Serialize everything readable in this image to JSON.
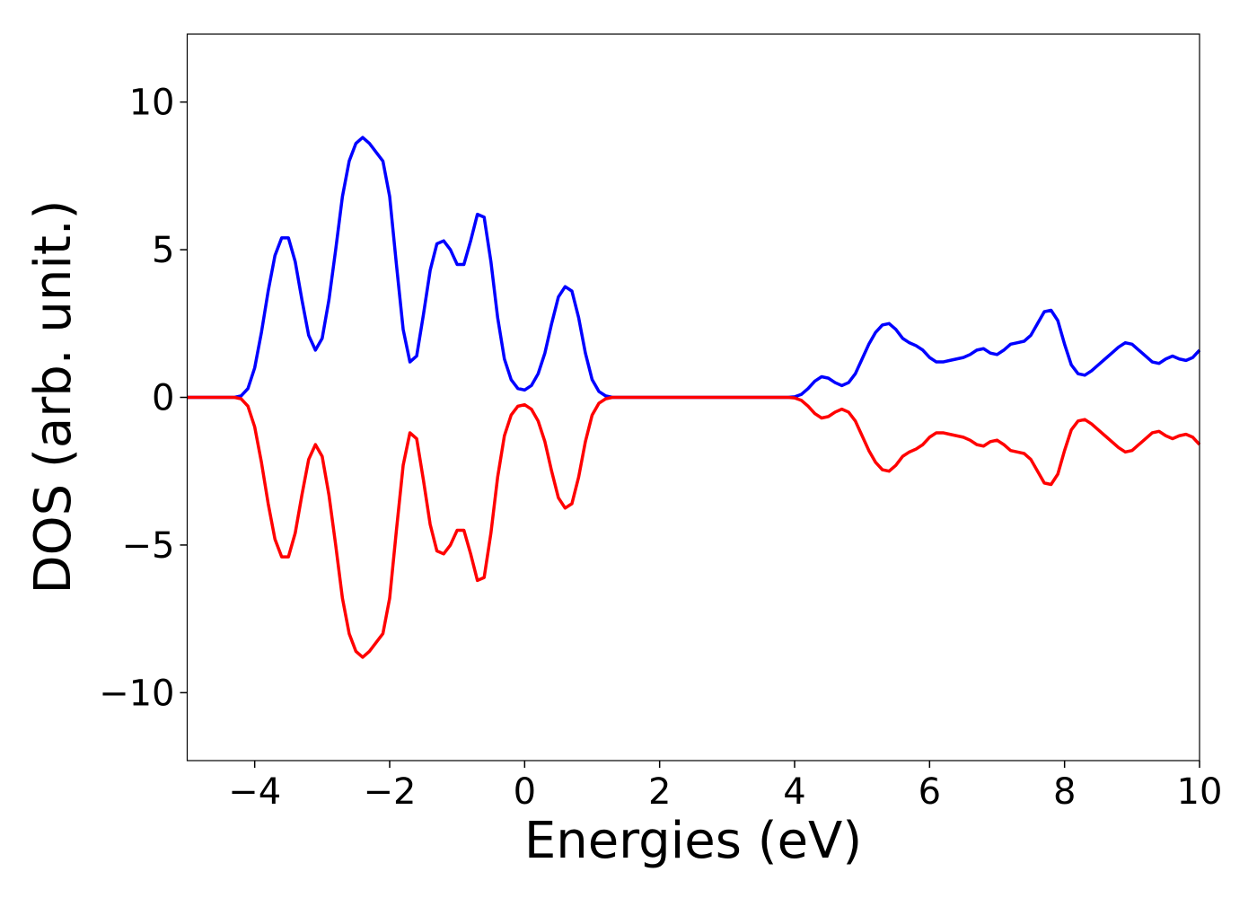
{
  "chart_data": {
    "type": "line",
    "xlabel": "Energies (eV)",
    "ylabel": "DOS (arb. unit.)",
    "xlim": [
      -5,
      10
    ],
    "ylim": [
      -12.3,
      12.3
    ],
    "xticks": [
      {
        "value": -4,
        "label": "−4"
      },
      {
        "value": -2,
        "label": "−2"
      },
      0,
      2,
      4,
      6,
      8,
      10
    ],
    "yticks": [
      {
        "value": -10,
        "label": "−10"
      },
      {
        "value": -5,
        "label": "−5"
      },
      0,
      5,
      10
    ],
    "grid": false,
    "x": [
      -5.0,
      -4.9,
      -4.8,
      -4.7,
      -4.6,
      -4.5,
      -4.4,
      -4.3,
      -4.2,
      -4.1,
      -4.0,
      -3.9,
      -3.8,
      -3.7,
      -3.6,
      -3.5,
      -3.4,
      -3.3,
      -3.2,
      -3.1,
      -3.0,
      -2.9,
      -2.8,
      -2.7,
      -2.6,
      -2.5,
      -2.4,
      -2.3,
      -2.2,
      -2.1,
      -2.0,
      -1.9,
      -1.8,
      -1.7,
      -1.6,
      -1.5,
      -1.4,
      -1.3,
      -1.2,
      -1.1,
      -1.0,
      -0.9,
      -0.8,
      -0.7,
      -0.6,
      -0.5,
      -0.4,
      -0.3,
      -0.2,
      -0.1,
      0.0,
      0.1,
      0.2,
      0.3,
      0.4,
      0.5,
      0.6,
      0.7,
      0.8,
      0.9,
      1.0,
      1.1,
      1.2,
      1.3,
      1.4,
      1.5,
      1.6,
      1.7,
      1.8,
      1.9,
      2.0,
      2.1,
      2.2,
      2.3,
      2.4,
      2.5,
      2.6,
      2.7,
      2.8,
      2.9,
      3.0,
      3.1,
      3.2,
      3.3,
      3.4,
      3.5,
      3.6,
      3.7,
      3.8,
      3.9,
      4.0,
      4.1,
      4.2,
      4.3,
      4.4,
      4.5,
      4.6,
      4.7,
      4.8,
      4.9,
      5.0,
      5.1,
      5.2,
      5.3,
      5.4,
      5.5,
      5.6,
      5.7,
      5.8,
      5.9,
      6.0,
      6.1,
      6.2,
      6.3,
      6.4,
      6.5,
      6.6,
      6.7,
      6.8,
      6.9,
      7.0,
      7.1,
      7.2,
      7.3,
      7.4,
      7.5,
      7.6,
      7.7,
      7.8,
      7.9,
      8.0,
      8.1,
      8.2,
      8.3,
      8.4,
      8.5,
      8.6,
      8.7,
      8.8,
      8.9,
      9.0,
      9.1,
      9.2,
      9.3,
      9.4,
      9.5,
      9.6,
      9.7,
      9.8,
      9.9,
      10.0
    ],
    "series": [
      {
        "color": "#0000ff",
        "values": [
          0,
          0,
          0,
          0,
          0,
          0,
          0,
          0,
          0.05,
          0.3,
          1.0,
          2.2,
          3.6,
          4.8,
          5.4,
          5.4,
          4.6,
          3.3,
          2.1,
          1.6,
          2.0,
          3.3,
          5.0,
          6.8,
          8.0,
          8.6,
          8.8,
          8.6,
          8.3,
          8.0,
          6.8,
          4.5,
          2.3,
          1.2,
          1.4,
          2.8,
          4.3,
          5.2,
          5.3,
          5.0,
          4.5,
          4.5,
          5.3,
          6.2,
          6.1,
          4.6,
          2.7,
          1.3,
          0.6,
          0.3,
          0.25,
          0.4,
          0.8,
          1.5,
          2.5,
          3.4,
          3.75,
          3.6,
          2.7,
          1.5,
          0.6,
          0.2,
          0.05,
          0,
          0,
          0,
          0,
          0,
          0,
          0,
          0,
          0,
          0,
          0,
          0,
          0,
          0,
          0,
          0,
          0,
          0,
          0,
          0,
          0,
          0,
          0,
          0,
          0,
          0,
          0,
          0.02,
          0.1,
          0.3,
          0.55,
          0.7,
          0.65,
          0.5,
          0.4,
          0.5,
          0.8,
          1.3,
          1.8,
          2.2,
          2.45,
          2.5,
          2.3,
          2.0,
          1.85,
          1.75,
          1.6,
          1.35,
          1.2,
          1.2,
          1.25,
          1.3,
          1.35,
          1.45,
          1.6,
          1.65,
          1.5,
          1.45,
          1.6,
          1.8,
          1.85,
          1.9,
          2.1,
          2.5,
          2.9,
          2.95,
          2.6,
          1.8,
          1.1,
          0.8,
          0.75,
          0.9,
          1.1,
          1.3,
          1.5,
          1.7,
          1.85,
          1.8,
          1.6,
          1.4,
          1.2,
          1.15,
          1.3,
          1.4,
          1.3,
          1.25,
          1.35,
          1.6
        ]
      },
      {
        "color": "#ff0000",
        "values": [
          0,
          0,
          0,
          0,
          0,
          0,
          0,
          0,
          -0.05,
          -0.3,
          -1.0,
          -2.2,
          -3.6,
          -4.8,
          -5.4,
          -5.4,
          -4.6,
          -3.3,
          -2.1,
          -1.6,
          -2.0,
          -3.3,
          -5.0,
          -6.8,
          -8.0,
          -8.6,
          -8.8,
          -8.6,
          -8.3,
          -8.0,
          -6.8,
          -4.5,
          -2.3,
          -1.2,
          -1.4,
          -2.8,
          -4.3,
          -5.2,
          -5.3,
          -5.0,
          -4.5,
          -4.5,
          -5.3,
          -6.2,
          -6.1,
          -4.6,
          -2.7,
          -1.3,
          -0.6,
          -0.3,
          -0.25,
          -0.4,
          -0.8,
          -1.5,
          -2.5,
          -3.4,
          -3.75,
          -3.6,
          -2.7,
          -1.5,
          -0.6,
          -0.2,
          -0.05,
          0,
          0,
          0,
          0,
          0,
          0,
          0,
          0,
          0,
          0,
          0,
          0,
          0,
          0,
          0,
          0,
          0,
          0,
          0,
          0,
          0,
          0,
          0,
          0,
          0,
          0,
          0,
          -0.02,
          -0.1,
          -0.3,
          -0.55,
          -0.7,
          -0.65,
          -0.5,
          -0.4,
          -0.5,
          -0.8,
          -1.3,
          -1.8,
          -2.2,
          -2.45,
          -2.5,
          -2.3,
          -2.0,
          -1.85,
          -1.75,
          -1.6,
          -1.35,
          -1.2,
          -1.2,
          -1.25,
          -1.3,
          -1.35,
          -1.45,
          -1.6,
          -1.65,
          -1.5,
          -1.45,
          -1.6,
          -1.8,
          -1.85,
          -1.9,
          -2.1,
          -2.5,
          -2.9,
          -2.95,
          -2.6,
          -1.8,
          -1.1,
          -0.8,
          -0.75,
          -0.9,
          -1.1,
          -1.3,
          -1.5,
          -1.7,
          -1.85,
          -1.8,
          -1.6,
          -1.4,
          -1.2,
          -1.15,
          -1.3,
          -1.4,
          -1.3,
          -1.25,
          -1.35,
          -1.6
        ]
      }
    ]
  }
}
